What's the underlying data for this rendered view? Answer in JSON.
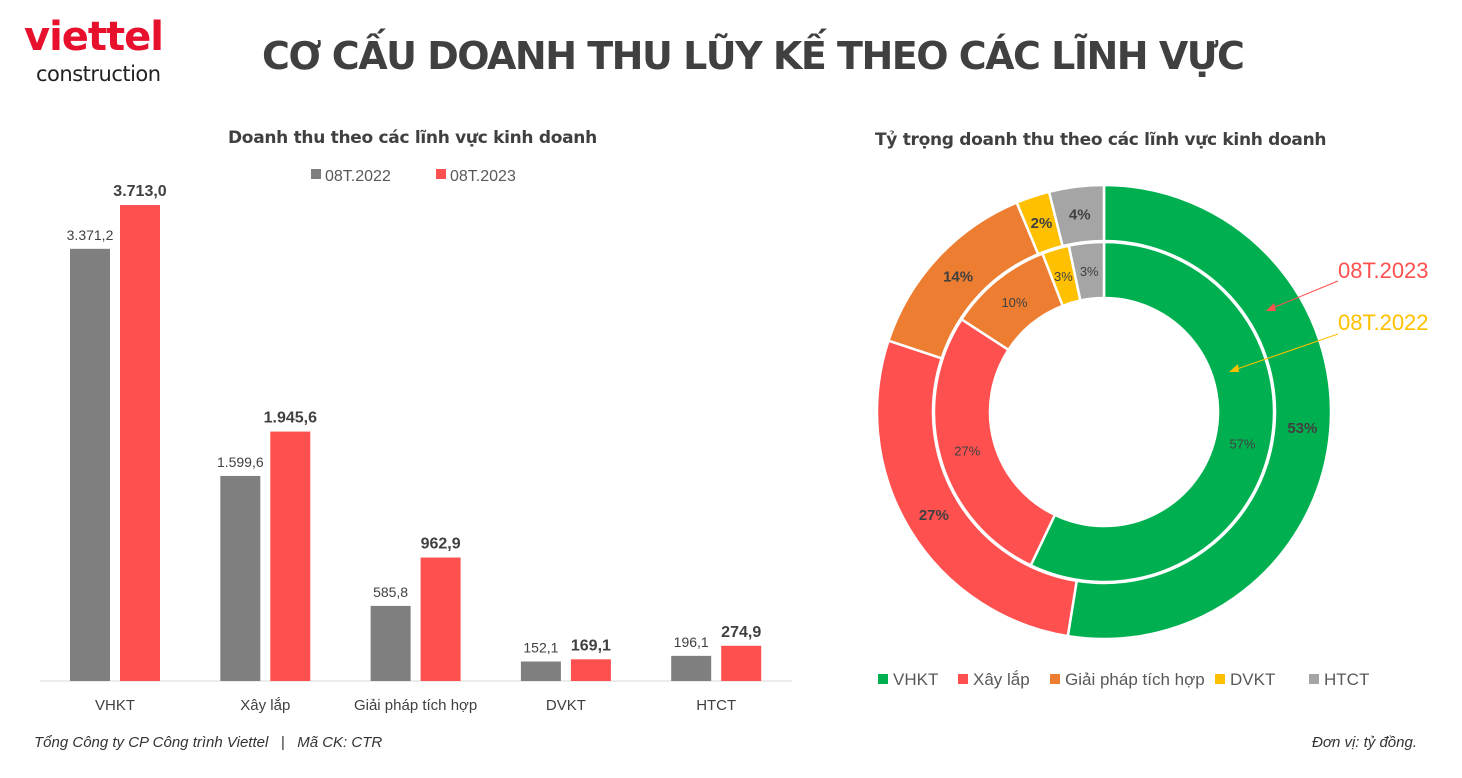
{
  "logo": {
    "brand": "viettel",
    "sub": "construction"
  },
  "header": {
    "title": "CƠ CẤU DOANH THU LŨY KẾ THEO CÁC LĨNH VỰC"
  },
  "footer": {
    "left": "Tổng Công ty CP Công trình Viettel   |   Mã CK: CTR",
    "right": "Đơn vị: tỷ đồng."
  },
  "chart_data": [
    {
      "type": "bar",
      "title": "Doanh thu theo các lĩnh vực kinh doanh",
      "categories": [
        "VHKT",
        "Xây lắp",
        "Giải pháp tích hợp",
        "DVKT",
        "HTCT"
      ],
      "series": [
        {
          "name": "08T.2022",
          "color": "#7f7f7f",
          "values": [
            3371.2,
            1599.6,
            585.8,
            152.1,
            196.1
          ],
          "labels": [
            "3.371,2",
            "1.599,6",
            "585,8",
            "152,1",
            "196,1"
          ]
        },
        {
          "name": "08T.2023",
          "color": "#ff5050",
          "values": [
            3713.0,
            1945.6,
            962.9,
            169.1,
            274.9
          ],
          "labels": [
            "3.713,0",
            "1.945,6",
            "962,9",
            "169,1",
            "274,9"
          ]
        }
      ],
      "ylim": [
        0,
        3713
      ],
      "legend": "top",
      "grid": false
    },
    {
      "type": "pie",
      "subtype": "doughnut",
      "title": "Tỷ trọng doanh thu theo các lĩnh vực kinh doanh",
      "categories": [
        "VHKT",
        "Xây lắp",
        "Giải pháp tích hợp",
        "DVKT",
        "HTCT"
      ],
      "colors": [
        "#00b050",
        "#ff5050",
        "#ed7d31",
        "#ffc000",
        "#a5a5a5"
      ],
      "series": [
        {
          "name": "08T.2023",
          "ring": "outer",
          "values": [
            3713.0,
            1945.6,
            962.9,
            169.1,
            274.9
          ],
          "labels": [
            "53%",
            "27%",
            "14%",
            "2%",
            "4%"
          ],
          "color": "#ff5050"
        },
        {
          "name": "08T.2022",
          "ring": "inner",
          "values": [
            3371.2,
            1599.6,
            585.8,
            152.1,
            196.1
          ],
          "labels": [
            "57%",
            "27%",
            "10%",
            "3%",
            "3%"
          ],
          "color": "#ffc000"
        }
      ],
      "legend": "bottom"
    }
  ]
}
